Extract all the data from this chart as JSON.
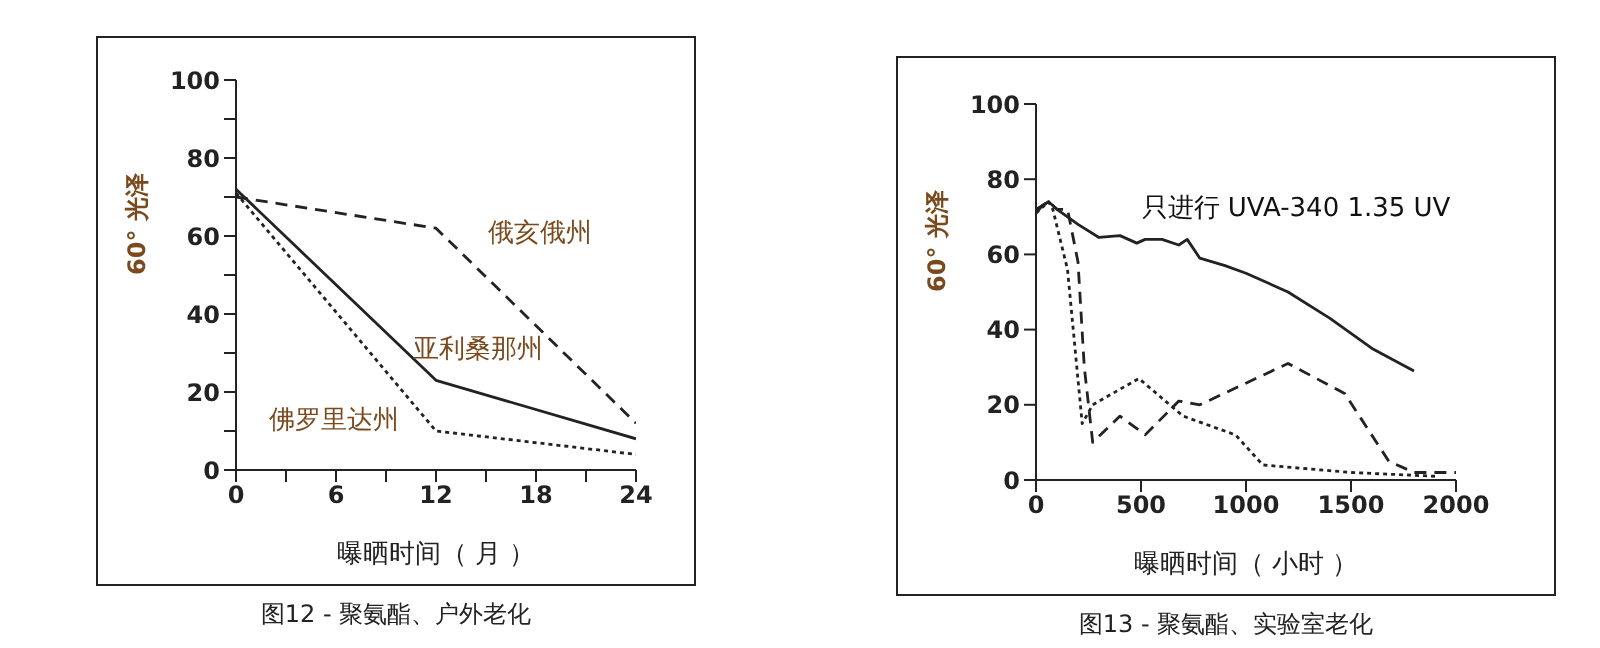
{
  "chart_data": [
    {
      "type": "line",
      "title": "图12 - 聚氨酯、户外老化",
      "xlabel": "曝晒时间（ 月 ）",
      "ylabel": "60° 光泽",
      "xlim": [
        0,
        24
      ],
      "xticks": [
        0,
        {
          "value": 3,
          "label": null
        },
        6,
        {
          "value": 9,
          "label": null
        },
        12,
        {
          "value": 15,
          "label": null
        },
        18,
        {
          "value": 21,
          "label": null
        },
        24
      ],
      "ylim": [
        0,
        100
      ],
      "yticks": [
        0,
        {
          "value": 10,
          "label": null
        },
        20,
        {
          "value": 30,
          "label": null
        },
        40,
        {
          "value": 50,
          "label": null
        },
        60,
        {
          "value": 70,
          "label": null
        },
        80,
        {
          "value": 90,
          "label": null
        },
        100
      ],
      "marker": "none",
      "series": [
        {
          "name": "俄亥俄州",
          "color": "#222222",
          "line_style": "dashed",
          "x": [
            0,
            12,
            24
          ],
          "values": [
            70,
            62,
            12
          ]
        },
        {
          "name": "亚利桑那州",
          "color": "#222222",
          "line_style": "solid",
          "x": [
            0,
            12,
            24
          ],
          "values": [
            72,
            23,
            8
          ]
        },
        {
          "name": "佛罗里达州",
          "color": "#222222",
          "line_style": "dotted",
          "x": [
            0,
            12,
            24
          ],
          "values": [
            71,
            10,
            4
          ]
        }
      ]
    },
    {
      "type": "line",
      "title": "图13 - 聚氨酯、实验室老化",
      "xlabel": "曝晒时间（ 小时 ）",
      "ylabel": "60° 光泽",
      "xlim": [
        0,
        2000
      ],
      "xticks": [
        0,
        500,
        1000,
        1500,
        2000
      ],
      "ylim": [
        0,
        100
      ],
      "yticks": [
        0,
        20,
        40,
        60,
        80,
        100
      ],
      "marker": "none",
      "series": [
        {
          "name": "只进行 UVA-340 1.35 UV",
          "color": "#222222",
          "line_style": "solid",
          "x": [
            0,
            30,
            60,
            100,
            150,
            200,
            300,
            400,
            480,
            520,
            600,
            680,
            720,
            780,
            900,
            1000,
            1200,
            1400,
            1600,
            1800
          ],
          "values": [
            71,
            73,
            74,
            72,
            70,
            68,
            64.5,
            65,
            63,
            64,
            64,
            62.5,
            64,
            59,
            57,
            55,
            50,
            43,
            35,
            29
          ]
        },
        {
          "color": "#222222",
          "line_style": "dashed",
          "x": [
            0,
            60,
            100,
            150,
            200,
            230,
            270,
            400,
            520,
            680,
            780,
            1200,
            1470,
            1680,
            1800,
            2000
          ],
          "values": [
            72,
            74,
            72,
            72,
            58,
            30,
            10,
            17,
            12,
            21,
            20,
            31,
            23,
            5,
            2,
            2
          ]
        },
        {
          "color": "#222222",
          "line_style": "dotted",
          "x": [
            0,
            60,
            80,
            150,
            220,
            270,
            490,
            700,
            950,
            1080,
            1500,
            1900
          ],
          "values": [
            71,
            74,
            72,
            56,
            15,
            20,
            27,
            17,
            12,
            4,
            2,
            1
          ]
        }
      ]
    }
  ]
}
